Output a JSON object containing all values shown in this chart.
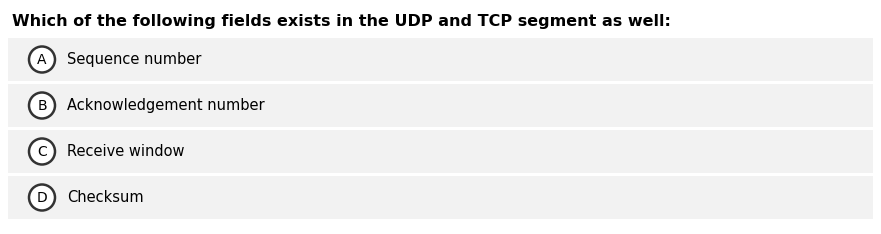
{
  "title": "Which of the following fields exists in the UDP and TCP segment as well:",
  "title_fontsize": 11.5,
  "title_fontweight": "bold",
  "options": [
    {
      "label": "A",
      "text": "Sequence number"
    },
    {
      "label": "B",
      "text": "Acknowledgement number"
    },
    {
      "label": "C",
      "text": "Receive window"
    },
    {
      "label": "D",
      "text": "Checksum"
    }
  ],
  "bg_color": "#ffffff",
  "option_bg_color": "#f2f2f2",
  "text_color": "#000000",
  "circle_edge_color": "#333333",
  "circle_face_color": "#ffffff",
  "option_text_fontsize": 10.5,
  "label_fontsize": 10
}
